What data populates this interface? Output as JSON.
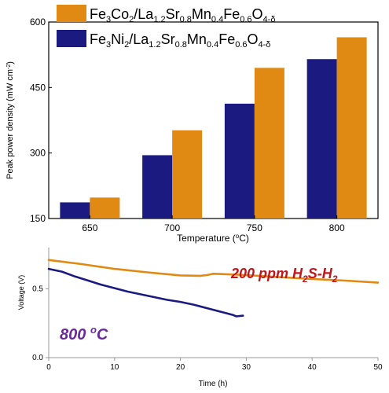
{
  "chart_data": [
    {
      "type": "bar",
      "xlabel": "Temperature (°C)",
      "ylabel": "Peak power density (mW cm⁻²)",
      "categories": [
        "650",
        "700",
        "750",
        "800"
      ],
      "ylim": [
        150,
        600
      ],
      "yticks": [
        "150",
        "300",
        "450",
        "600"
      ],
      "legend_position": "top-left",
      "series": [
        {
          "name": "Fe3Ni2/La1.2Sr0.8Mn0.4Fe0.6O4-δ",
          "color": "#1a1a80",
          "values": [
            187,
            295,
            413,
            515
          ]
        },
        {
          "name": "Fe3Co2/La1.2Sr0.8Mn0.4Fe0.6O4-δ",
          "color": "#e08a14",
          "values": [
            198,
            352,
            495,
            565
          ]
        }
      ]
    },
    {
      "type": "line",
      "xlabel": "Time (h)",
      "ylabel": "Voltage (V)",
      "xlim": [
        0,
        50
      ],
      "ylim": [
        0,
        0.8
      ],
      "xticks": [
        "0",
        "10",
        "20",
        "30",
        "40",
        "50"
      ],
      "yticks": [
        "0.0",
        "0.5"
      ],
      "annotations": {
        "atmosphere": "200 ppm H₂S-H₂",
        "temperature": "800 ᵒC"
      },
      "series": [
        {
          "color": "#e08a14",
          "x": [
            0,
            5,
            10,
            15,
            20,
            23,
            24,
            25,
            26,
            30,
            35,
            40,
            45,
            50
          ],
          "y": [
            0.71,
            0.68,
            0.645,
            0.62,
            0.598,
            0.595,
            0.6,
            0.61,
            0.608,
            0.6,
            0.585,
            0.572,
            0.56,
            0.545
          ]
        },
        {
          "color": "#1a1a80",
          "x": [
            0,
            2,
            4,
            6,
            8,
            10,
            12,
            14,
            16,
            18,
            20,
            21,
            22,
            24,
            26,
            28,
            28.5,
            29.5
          ],
          "y": [
            0.645,
            0.625,
            0.59,
            0.56,
            0.53,
            0.505,
            0.48,
            0.46,
            0.44,
            0.42,
            0.405,
            0.395,
            0.385,
            0.36,
            0.335,
            0.31,
            0.3,
            0.305
          ]
        }
      ]
    }
  ]
}
